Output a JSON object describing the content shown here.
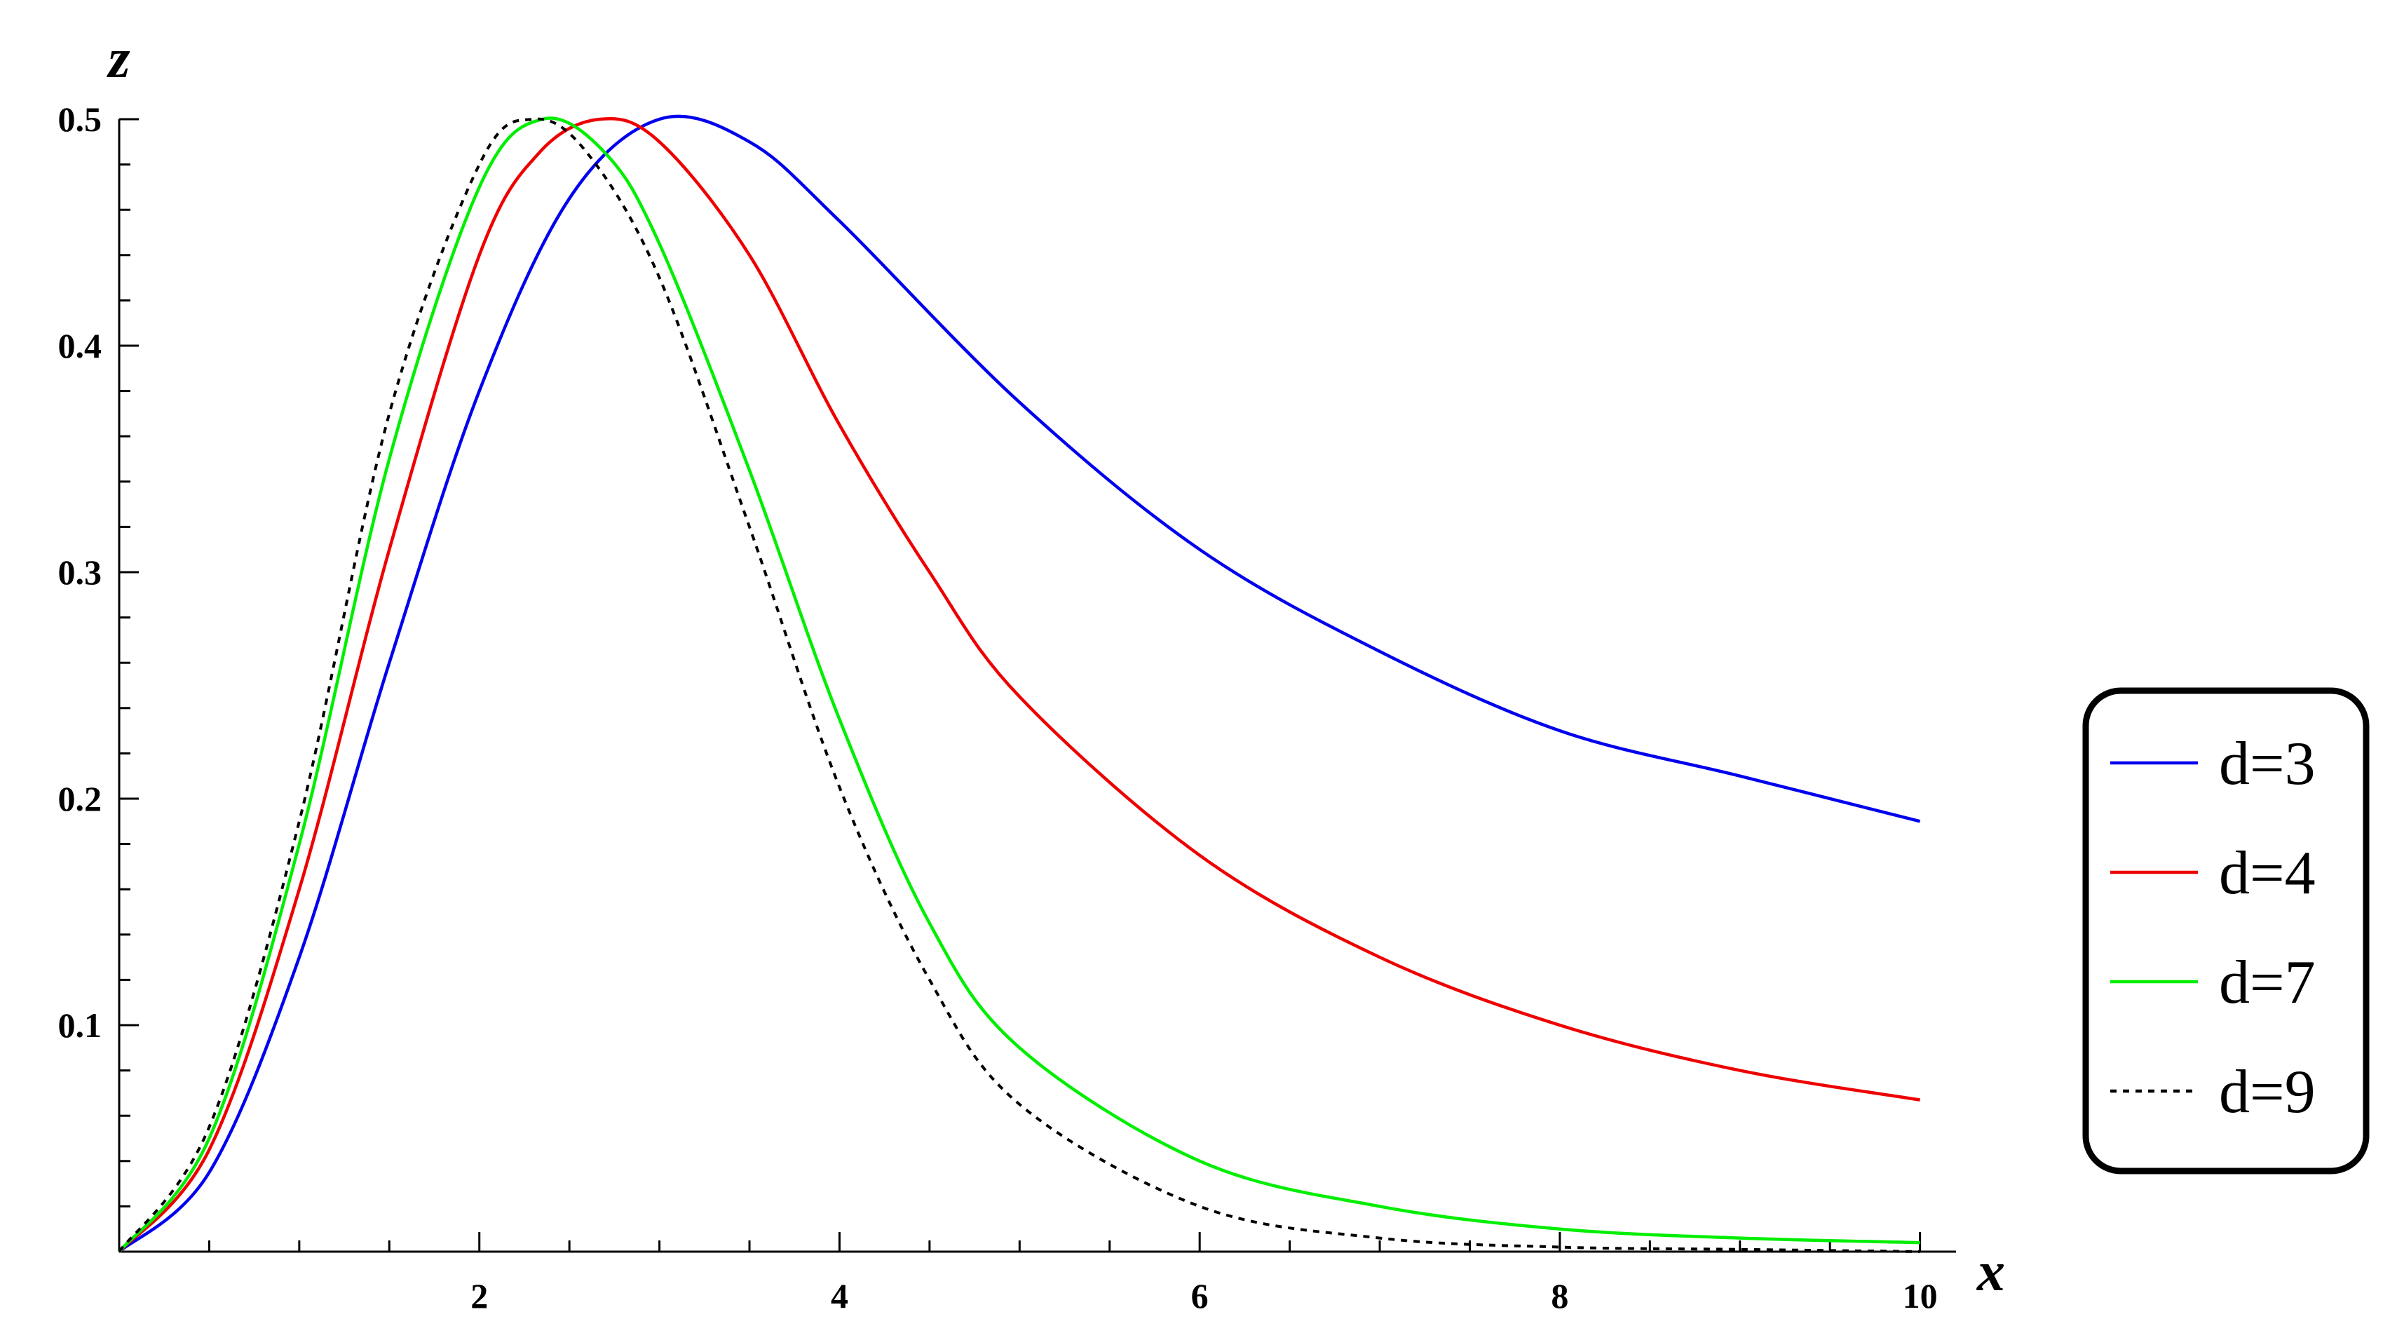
{
  "chart_data": {
    "type": "line",
    "xlabel": "x",
    "ylabel": "z",
    "xlim": [
      0,
      10.2
    ],
    "ylim": [
      0,
      0.5
    ],
    "x_ticks": [
      2,
      4,
      6,
      8,
      10
    ],
    "y_ticks": [
      0.1,
      0.2,
      0.3,
      0.4,
      0.5
    ],
    "x_tick_labels": [
      "2",
      "4",
      "6",
      "8",
      "10"
    ],
    "y_tick_labels": [
      "0.1",
      "0.2",
      "0.3",
      "0.4",
      "0.5"
    ],
    "grid": false,
    "legend_position": "right",
    "series": [
      {
        "name": "d=3",
        "color": "#0000ee",
        "dash": "solid",
        "x": [
          0,
          0.5,
          1,
          1.5,
          2,
          2.5,
          3,
          3.5,
          4,
          5,
          6,
          7,
          8,
          9,
          10
        ],
        "y": [
          0,
          0.035,
          0.13,
          0.26,
          0.38,
          0.465,
          0.5,
          0.49,
          0.455,
          0.375,
          0.31,
          0.265,
          0.23,
          0.21,
          0.19
        ]
      },
      {
        "name": "d=4",
        "color": "#ee0000",
        "dash": "solid",
        "x": [
          0,
          0.5,
          1,
          1.5,
          2,
          2.33,
          2.67,
          3,
          3.5,
          4,
          4.5,
          5,
          6,
          7,
          8,
          9,
          10
        ],
        "y": [
          0,
          0.045,
          0.16,
          0.31,
          0.44,
          0.485,
          0.5,
          0.49,
          0.44,
          0.365,
          0.3,
          0.245,
          0.175,
          0.13,
          0.1,
          0.08,
          0.067
        ]
      },
      {
        "name": "d=7",
        "color": "#00ee00",
        "dash": "solid",
        "x": [
          0,
          0.5,
          1,
          1.5,
          2,
          2.35,
          2.7,
          3,
          3.5,
          4,
          4.5,
          5,
          6,
          7,
          8,
          9,
          10
        ],
        "y": [
          0,
          0.05,
          0.18,
          0.35,
          0.47,
          0.5,
          0.485,
          0.445,
          0.345,
          0.235,
          0.145,
          0.09,
          0.04,
          0.02,
          0.01,
          0.006,
          0.004
        ]
      },
      {
        "name": "d=9",
        "color": "#000000",
        "dash": "dotted",
        "x": [
          0,
          0.5,
          1,
          1.5,
          2,
          2.3,
          2.6,
          3,
          3.5,
          4,
          4.5,
          5,
          6,
          7,
          8,
          9,
          10
        ],
        "y": [
          0,
          0.055,
          0.19,
          0.37,
          0.48,
          0.5,
          0.485,
          0.43,
          0.32,
          0.205,
          0.12,
          0.065,
          0.02,
          0.006,
          0.002,
          0.001,
          0
        ]
      }
    ]
  }
}
